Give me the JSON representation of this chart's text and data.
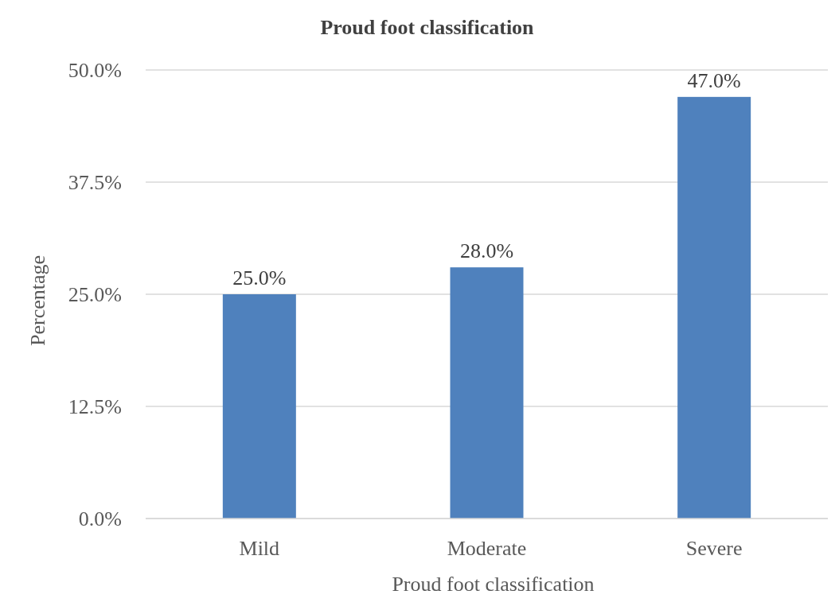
{
  "chart_data": {
    "type": "bar",
    "title": "Proud foot classification",
    "xlabel": "Proud foot classification",
    "ylabel": "Percentage",
    "categories": [
      "Mild",
      "Moderate",
      "Severe"
    ],
    "values": [
      25.0,
      28.0,
      47.0
    ],
    "color": "#4f81bd",
    "value_labels": [
      "25.0%",
      "28.0%",
      "47.0%"
    ],
    "ylim": [
      0,
      50
    ],
    "yticks": [
      {
        "value": 0,
        "label": "0.0%"
      },
      {
        "value": 12.5,
        "label": "12.5%"
      },
      {
        "value": 25,
        "label": "25.0%"
      },
      {
        "value": 37.5,
        "label": "37.5%"
      },
      {
        "value": 50,
        "label": "50.0%"
      }
    ],
    "grid": "y"
  }
}
